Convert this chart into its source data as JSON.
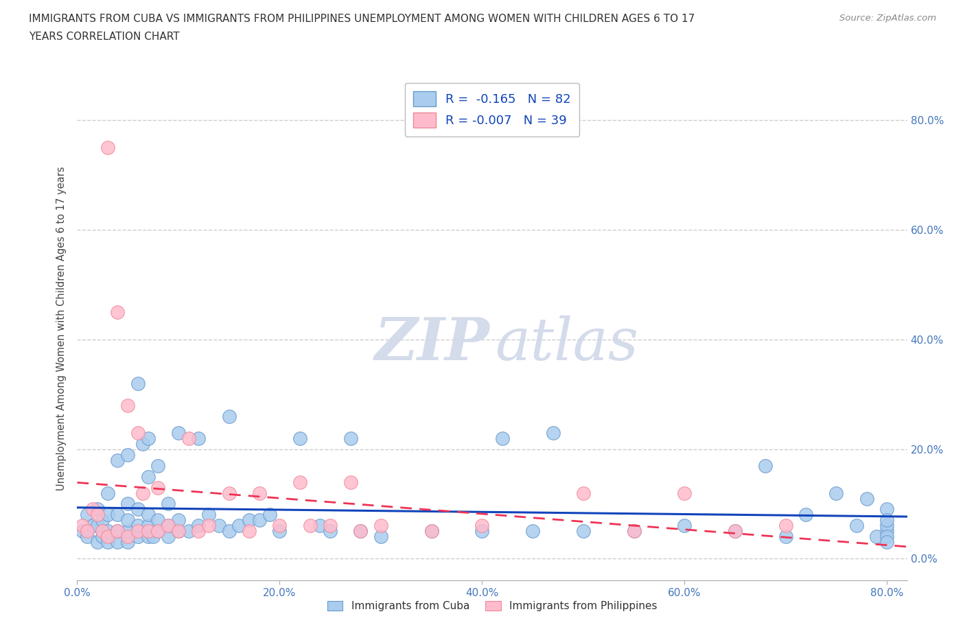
{
  "title_line1": "IMMIGRANTS FROM CUBA VS IMMIGRANTS FROM PHILIPPINES UNEMPLOYMENT AMONG WOMEN WITH CHILDREN AGES 6 TO 17",
  "title_line2": "YEARS CORRELATION CHART",
  "source": "Source: ZipAtlas.com",
  "ylabel": "Unemployment Among Women with Children Ages 6 to 17 years",
  "xlim": [
    0.0,
    0.82
  ],
  "ylim": [
    -0.04,
    0.88
  ],
  "xticks": [
    0.0,
    0.2,
    0.4,
    0.6,
    0.8
  ],
  "yticks": [
    0.0,
    0.2,
    0.4,
    0.6,
    0.8
  ],
  "xticklabels": [
    "0.0%",
    "20.0%",
    "40.0%",
    "60.0%",
    "80.0%"
  ],
  "yticklabels": [
    "0.0%",
    "20.0%",
    "40.0%",
    "60.0%",
    "80.0%"
  ],
  "cuba_color": "#aaccee",
  "cuba_edge_color": "#6699cc",
  "phil_color": "#ffbbcc",
  "phil_edge_color": "#ee8899",
  "cuba_line_color": "#1144bb",
  "phil_line_color": "#ee3355",
  "legend_cuba_R": "-0.165",
  "legend_cuba_N": "82",
  "legend_phil_R": "-0.007",
  "legend_phil_N": "39",
  "cuba_label": "Immigrants from Cuba",
  "phil_label": "Immigrants from Philippines",
  "cuba_x": [
    0.005,
    0.01,
    0.01,
    0.015,
    0.02,
    0.02,
    0.02,
    0.025,
    0.025,
    0.03,
    0.03,
    0.03,
    0.03,
    0.04,
    0.04,
    0.04,
    0.04,
    0.05,
    0.05,
    0.05,
    0.05,
    0.05,
    0.06,
    0.06,
    0.06,
    0.06,
    0.065,
    0.07,
    0.07,
    0.07,
    0.07,
    0.07,
    0.075,
    0.08,
    0.08,
    0.08,
    0.09,
    0.09,
    0.09,
    0.1,
    0.1,
    0.1,
    0.11,
    0.12,
    0.12,
    0.13,
    0.14,
    0.15,
    0.15,
    0.16,
    0.17,
    0.18,
    0.19,
    0.2,
    0.22,
    0.24,
    0.25,
    0.27,
    0.28,
    0.3,
    0.35,
    0.4,
    0.42,
    0.45,
    0.47,
    0.5,
    0.55,
    0.6,
    0.65,
    0.68,
    0.7,
    0.72,
    0.75,
    0.77,
    0.78,
    0.79,
    0.8,
    0.8,
    0.8,
    0.8,
    0.8,
    0.8
  ],
  "cuba_y": [
    0.05,
    0.04,
    0.08,
    0.06,
    0.03,
    0.06,
    0.09,
    0.04,
    0.07,
    0.03,
    0.05,
    0.08,
    0.12,
    0.03,
    0.05,
    0.08,
    0.18,
    0.03,
    0.05,
    0.07,
    0.1,
    0.19,
    0.04,
    0.06,
    0.09,
    0.32,
    0.21,
    0.04,
    0.06,
    0.08,
    0.15,
    0.22,
    0.04,
    0.05,
    0.07,
    0.17,
    0.04,
    0.06,
    0.1,
    0.05,
    0.07,
    0.23,
    0.05,
    0.06,
    0.22,
    0.08,
    0.06,
    0.05,
    0.26,
    0.06,
    0.07,
    0.07,
    0.08,
    0.05,
    0.22,
    0.06,
    0.05,
    0.22,
    0.05,
    0.04,
    0.05,
    0.05,
    0.22,
    0.05,
    0.23,
    0.05,
    0.05,
    0.06,
    0.05,
    0.17,
    0.04,
    0.08,
    0.12,
    0.06,
    0.11,
    0.04,
    0.09,
    0.05,
    0.06,
    0.04,
    0.07,
    0.03
  ],
  "phil_x": [
    0.005,
    0.01,
    0.015,
    0.02,
    0.025,
    0.03,
    0.03,
    0.04,
    0.04,
    0.05,
    0.05,
    0.06,
    0.06,
    0.065,
    0.07,
    0.08,
    0.08,
    0.09,
    0.1,
    0.11,
    0.12,
    0.13,
    0.15,
    0.17,
    0.18,
    0.2,
    0.22,
    0.23,
    0.25,
    0.27,
    0.28,
    0.3,
    0.35,
    0.4,
    0.5,
    0.55,
    0.6,
    0.65,
    0.7
  ],
  "phil_y": [
    0.06,
    0.05,
    0.09,
    0.08,
    0.05,
    0.04,
    0.75,
    0.05,
    0.45,
    0.04,
    0.28,
    0.05,
    0.23,
    0.12,
    0.05,
    0.13,
    0.05,
    0.06,
    0.05,
    0.22,
    0.05,
    0.06,
    0.12,
    0.05,
    0.12,
    0.06,
    0.14,
    0.06,
    0.06,
    0.14,
    0.05,
    0.06,
    0.05,
    0.06,
    0.12,
    0.05,
    0.12,
    0.05,
    0.06
  ]
}
